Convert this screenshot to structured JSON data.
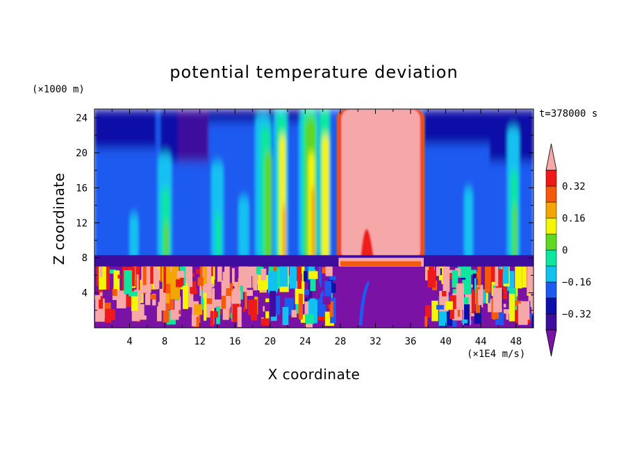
{
  "chart_data": {
    "type": "heatmap",
    "title": "potential temperature deviation",
    "xlabel": "X coordinate",
    "ylabel": "Z coordinate",
    "x_unit": "(×1E4 m/s)",
    "y_unit": "(×1000 m)",
    "time_label": "t=378000 s",
    "xlim": [
      0,
      50
    ],
    "ylim": [
      0,
      25
    ],
    "x_ticks": [
      4,
      8,
      12,
      16,
      20,
      24,
      28,
      32,
      36,
      40,
      44,
      48
    ],
    "y_ticks": [
      4,
      8,
      12,
      16,
      20,
      24
    ],
    "colorbar": {
      "levels": [
        -0.4,
        -0.32,
        -0.24,
        -0.16,
        -0.08,
        0,
        0.08,
        0.16,
        0.24,
        0.32,
        0.4
      ],
      "labels": [
        "0.32",
        "0.16",
        "0",
        "−0.16",
        "−0.32"
      ],
      "label_values": [
        0.32,
        0.16,
        0,
        -0.16,
        -0.32
      ],
      "colors": [
        "#7a12a6",
        "#3c0d9e",
        "#0a10a8",
        "#1e5af0",
        "#12c0f2",
        "#0ee6a0",
        "#5ed820",
        "#f5f50a",
        "#f5a500",
        "#f55a0a",
        "#ee1a1a",
        "#f6a8a8"
      ],
      "extend": "both"
    },
    "fields": {
      "upper_layer": "vertical columns of positive and negative deviation from z≈8 to top; strong positive column between x≈28 and x≈37",
      "lower_layer": "turbulent mixed positive/negative pattern below z≈7; negative (purple) region between x≈27 and x≈38"
    }
  }
}
